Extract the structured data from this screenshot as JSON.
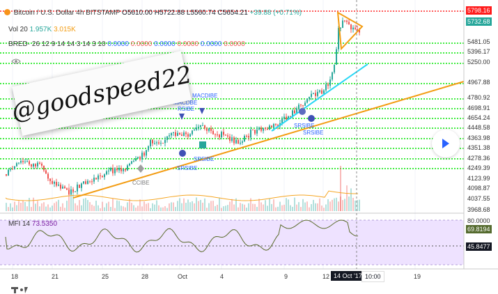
{
  "header": {
    "symbol": "Bitcoin / U.S. Dollar",
    "interval": "4h",
    "exchange": "BITSTAMP",
    "ohlc": {
      "open": "O5610.00",
      "high": "H5722.88",
      "low": "L5560.74",
      "close": "C5654.21",
      "change": "+39.88 (+0.71%)"
    }
  },
  "vol": {
    "label": "Vol 20",
    "v1": "1.957K",
    "v2": "3.015K"
  },
  "bred": {
    "label": "BRED· 26 12 9 14 14 3 14 3 10",
    "values": [
      "0.0000",
      "0.0000",
      "0.0000",
      "0.0000",
      "0.0000",
      "0.0000"
    ]
  },
  "watermark": {
    "text": "@goodspeed22"
  },
  "price_axis": {
    "labels": [
      "5481.05",
      "5396.17",
      "5250.00",
      "4967.88",
      "4780.92",
      "4698.91",
      "4654.24",
      "4448.58",
      "4363.98",
      "4351.38",
      "4278.36",
      "4249.39",
      "4123.99",
      "4098.87",
      "4037.55",
      "3968.68"
    ],
    "tag_top": "5798.16",
    "tag_current": "5732.68"
  },
  "mfi": {
    "label": "MFI 14",
    "value": "73.5350",
    "axis_label": "80.0000",
    "tag_mfi": "69.8194",
    "tag_low": "45.8477"
  },
  "annotations": {
    "macdbe": "MACDBE",
    "rsibe": "RSIBE",
    "srsibe1": "SRSIBE",
    "srsibe2": "SRSIBE",
    "srsibe3": "SRSIBE",
    "cci": "CCIBE",
    "srsibe4": "SRSIBE",
    "macdibe": "MACDIBE",
    "rsibe2": "RSIBE"
  },
  "time_axis": {
    "labels": [
      "18",
      "21",
      "25",
      "28",
      "Oct",
      "4",
      "9",
      "12",
      "19"
    ],
    "active_date": "14 Oct '17",
    "active_time": "10:00"
  },
  "colors": {
    "up": "#26a69a",
    "down": "#ef5350",
    "support": "#00e600",
    "trend_orange": "#f39c12",
    "trend_cyan": "#27d7f5",
    "mfi_fill": "#eee2ff",
    "mfi_line": "#5a6b2b",
    "resistance_red": "#ff2626"
  },
  "icons": [
    "bitcoin-icon",
    "eye-icon",
    "chevron-right-icon",
    "tradingview-logo-icon"
  ]
}
